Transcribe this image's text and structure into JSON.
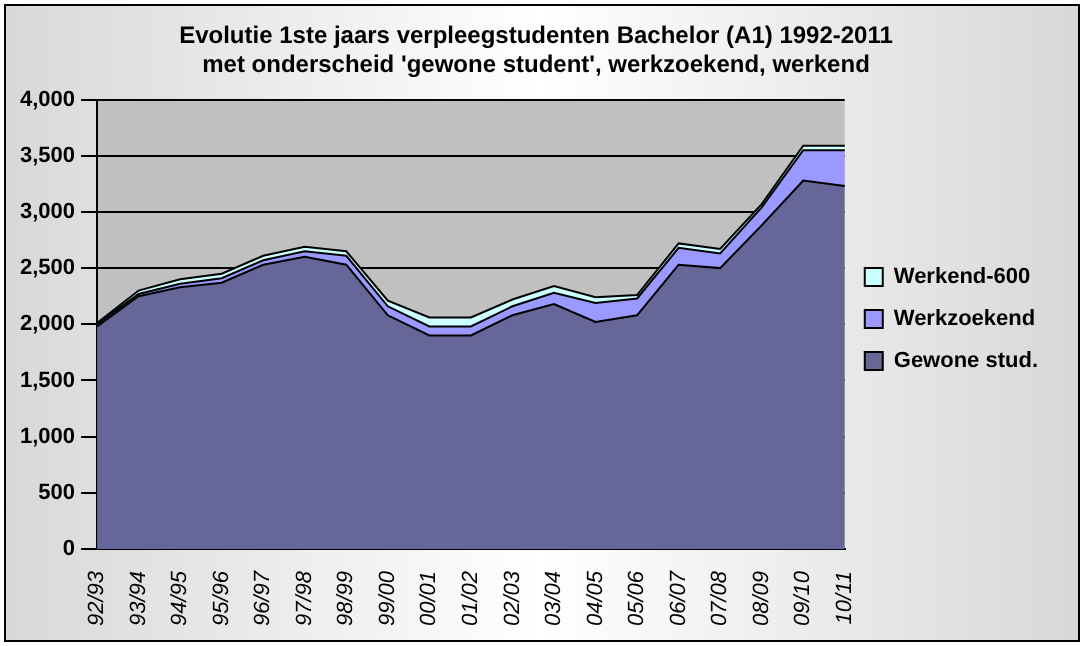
{
  "chart_data": {
    "type": "area",
    "stacked": true,
    "title": [
      "Evolutie 1ste jaars verpleegstudenten Bachelor (A1) 1992-2011",
      "met onderscheid 'gewone student', werkzoekend, werkend"
    ],
    "categories": [
      "92/93",
      "93/94",
      "94/95",
      "95/96",
      "96/97",
      "97/98",
      "98/99",
      "99/00",
      "00/01",
      "01/02",
      "02/03",
      "03/04",
      "04/05",
      "05/06",
      "06/07",
      "07/08",
      "08/09",
      "09/10",
      "10/11"
    ],
    "series": [
      {
        "name": "Gewone stud.",
        "color": "#666699",
        "values": [
          1980,
          2250,
          2330,
          2370,
          2530,
          2600,
          2530,
          2080,
          1900,
          1900,
          2080,
          2180,
          2020,
          2080,
          2530,
          2500,
          2880,
          3280,
          3230
        ]
      },
      {
        "name": "Werkzoekend",
        "color": "#9999ff",
        "values": [
          20,
          20,
          30,
          40,
          40,
          50,
          80,
          80,
          80,
          80,
          80,
          100,
          170,
          150,
          150,
          130,
          160,
          270,
          320
        ]
      },
      {
        "name": "Werkend-600",
        "color": "#ccffff",
        "values": [
          10,
          30,
          40,
          40,
          40,
          40,
          40,
          50,
          80,
          80,
          60,
          60,
          50,
          30,
          40,
          40,
          30,
          40,
          40
        ]
      }
    ],
    "ylim": [
      0,
      4000
    ],
    "yticks": [
      0,
      500,
      {
        "value": 1000,
        "label": "1,000"
      },
      {
        "value": 1500,
        "label": "1,500"
      },
      {
        "value": 2000,
        "label": "2,000"
      },
      {
        "value": 2500,
        "label": "2,500"
      },
      {
        "value": 3000,
        "label": "3,000"
      },
      {
        "value": 3500,
        "label": "3,500"
      },
      {
        "value": 4000,
        "label": "4,000"
      }
    ],
    "grid": "y",
    "legend": "right"
  }
}
